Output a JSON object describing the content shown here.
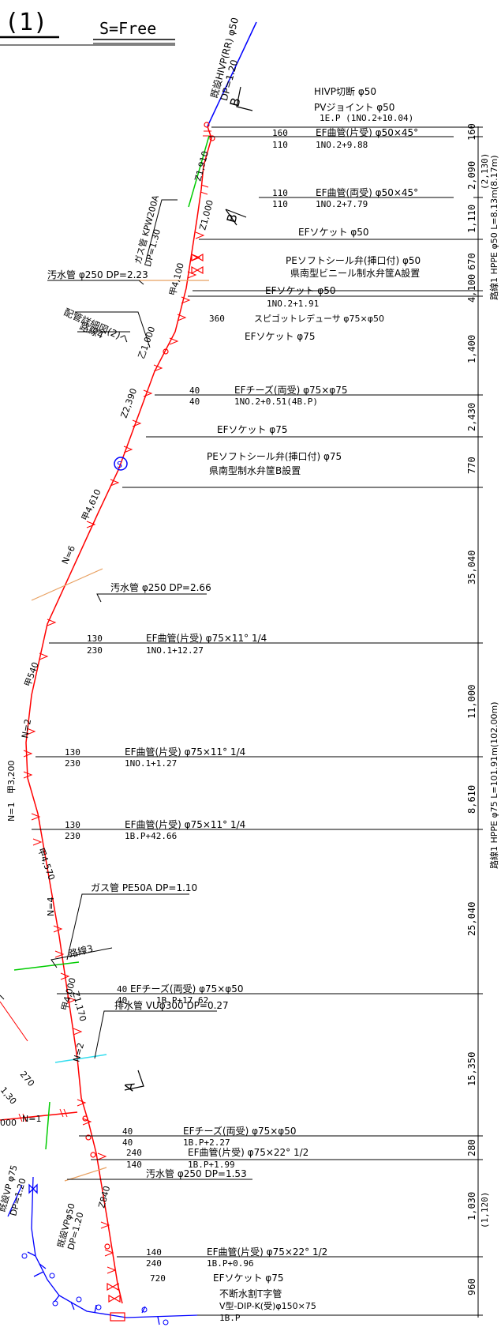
{
  "header": {
    "number": "(1)",
    "scale": "S=Free"
  },
  "main_pipe_color": "#ff0000",
  "existing_pipe_color": "#0000ff",
  "label_pipe_color": "#000000",
  "top_pipe_label": {
    "line1": "既設HIVP(RR) φ50",
    "line2": "DP=1.20"
  },
  "gas_pipe_label": {
    "line1": "ガス管 KPW200A",
    "line2": "DP=1.30"
  },
  "section_markers": {
    "b": "B",
    "a": "A"
  },
  "labels": {
    "sewer1": "汚水管 φ250 DP=2.23",
    "detail": "配管詳細図(2)へ",
    "route4": "路線4",
    "sewer2": "汚水管 φ250 DP=2.66",
    "gas2": "ガス管 PE50A DP=1.10",
    "route3": "路線3",
    "drain": "排水管 VUφ300 DP=0.27",
    "sewer3": "汚水管 φ250 DP=1.53"
  },
  "pipe_notes": {
    "z1910": "Z1,910",
    "z1000a": "Z1,000",
    "k4100": "甲4,100",
    "k1000": "乙1,000",
    "z2390": "Z2,390",
    "k4610": "甲4,610",
    "n6": "N=6",
    "k540": "甲540",
    "n2a": "N=2",
    "n1a": "N=1",
    "k3200": "甲3,200",
    "k4570": "甲4,570",
    "n4": "N=4",
    "z1170": "Z1,170",
    "k4000": "甲4,000",
    "n2b": "N=2",
    "z840": "Z840",
    "n1b": "N=1",
    "v000": "000",
    "v270": "270",
    "v30": "1,30"
  },
  "valve_symbol": "S",
  "bottom_left_labels": {
    "vp75a": "既設VP φ75",
    "vp75b": "DP=1.20",
    "vp50a": "既設VPφ50",
    "vp50b": "DP=1.20"
  },
  "callouts": {
    "c1a": "HIVP切断 φ50",
    "c1b": "PVジョイント φ50",
    "c1c": "1E.P (1NO.2+10.04)",
    "c2a": "160",
    "c2b": "110",
    "c2c": "EF曲管(片受) φ50×45°",
    "c2d": "1NO.2+9.88",
    "c3a": "110",
    "c3b": "110",
    "c3c": "EF曲管(両受) φ50×45°",
    "c3d": "1NO.2+7.79",
    "c4": "EFソケット φ50",
    "c5a": "PEソフトシール弁(挿口付) φ50",
    "c5b": "県南型ビニール制水弁筐A設置",
    "c6a": "EFソケット φ50",
    "c6b": "1NO.2+1.91",
    "c6c": "360",
    "c6d": "スピゴットレデューサ φ75×φ50",
    "c6e": "EFソケット φ75",
    "c7a": "40",
    "c7b": "40",
    "c7c": "EFチーズ(両受) φ75×φ75",
    "c7d": "1NO.2+0.51(4B.P)",
    "c8": "EFソケット φ75",
    "c9a": "PEソフトシール弁(挿口付) φ75",
    "c9b": "県南型制水弁筐B設置",
    "c10a": "130",
    "c10b": "230",
    "c10c": "EF曲管(片受) φ75×11° 1/4",
    "c10d": "1NO.1+12.27",
    "c11a": "130",
    "c11b": "230",
    "c11c": "EF曲管(片受) φ75×11° 1/4",
    "c11d": "1NO.1+1.27",
    "c12a": "130",
    "c12b": "230",
    "c12c": "EF曲管(片受) φ75×11° 1/4",
    "c12d": "1B.P+42.66",
    "c13a": "40",
    "c13b": "40",
    "c13c": "EFチーズ(両受) φ75×φ50",
    "c13d": "1B.P+17.62",
    "c14a": "40",
    "c14b": "40",
    "c14c": "EFチーズ(両受) φ75×φ50",
    "c14d": "1B.P+2.27",
    "c14e": "240",
    "c14f": "140",
    "c14g": "EF曲管(片受) φ75×22° 1/2",
    "c14h": "1B.P+1.99",
    "c15a": "140",
    "c15b": "240",
    "c15c": "EF曲管(片受) φ75×22° 1/2",
    "c15d": "1B.P+0.96",
    "c15e": "720",
    "c15f": "EFソケット φ75",
    "c16a": "不断水割T字管",
    "c16b": "V型-DIP-K(受)φ150×75",
    "c16c": "1B.P"
  },
  "dimensions": {
    "d160": "160",
    "d2090": "2,090",
    "d2130": "(2,130)",
    "d1110": "1,110",
    "d670": "670",
    "d4100": "4,100",
    "d1400": "1,400",
    "d2430": "2,430",
    "d770": "770",
    "d35040": "35,040",
    "d11000": "11,000",
    "d8610": "8,610",
    "d25040": "25,040",
    "d15350": "15,350",
    "d280": "280",
    "d1030": "1,030",
    "d1120": "(1,120)",
    "d960": "960"
  },
  "route_labels": {
    "upper": "路線1 HPPE φ50 L=8.13m(8.17m)",
    "lower": "路線1 HPPE φ75 L=101.91m(102.00m)"
  }
}
